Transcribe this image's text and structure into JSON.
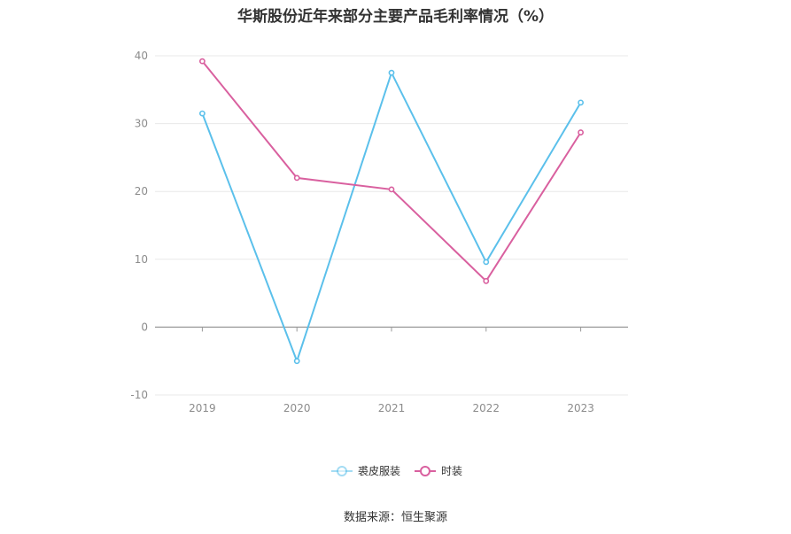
{
  "chart_data": {
    "type": "line",
    "title": "华斯股份近年来部分主要产品毛利率情况（%）",
    "categories": [
      "2019",
      "2020",
      "2021",
      "2022",
      "2023"
    ],
    "series": [
      {
        "name": "裘皮服装",
        "color": "#5bc0eb",
        "values": [
          31.5,
          -5.0,
          37.5,
          9.6,
          33.1
        ]
      },
      {
        "name": "时装",
        "color": "#d9609f",
        "values": [
          39.2,
          22.0,
          20.3,
          6.8,
          28.7
        ]
      }
    ],
    "ylim": [
      -10,
      40
    ],
    "yticks": [
      -10,
      0,
      10,
      20,
      30,
      40
    ],
    "grid": true,
    "legend": "bottom"
  },
  "source": "数据来源：恒生聚源"
}
